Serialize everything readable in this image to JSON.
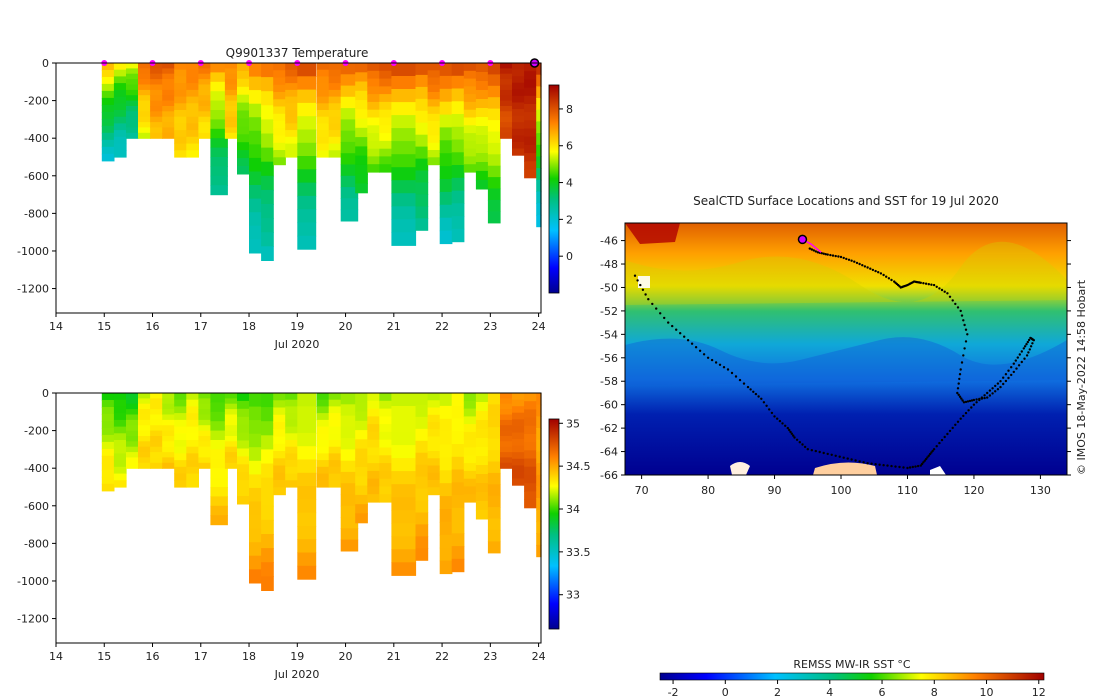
{
  "chart_data": [
    {
      "type": "heatmap",
      "title": "Q9901337  Temperature",
      "xlabel": "Jul 2020",
      "ylabel": "",
      "x_ticks": [
        "14",
        "15",
        "16",
        "17",
        "18",
        "19",
        "20",
        "21",
        "22",
        "23",
        "24"
      ],
      "y_ticks": [
        "0",
        "-200",
        "-400",
        "-600",
        "-800",
        "-1000",
        "-1200"
      ],
      "xlim": [
        14,
        24.05
      ],
      "ylim": [
        -1330,
        0
      ],
      "colorbar": {
        "ticks": [
          "0",
          "2",
          "4",
          "6",
          "8"
        ],
        "range": [
          -2,
          9.3
        ]
      },
      "profile_markers": [
        15,
        16,
        17,
        18,
        19,
        20,
        21,
        22,
        23
      ],
      "current_marker": 24,
      "profiles": [
        {
          "x": 14.95,
          "w": 0.25,
          "max": -520,
          "surf": 7,
          "deep": 2
        },
        {
          "x": 15.2,
          "w": 0.25,
          "max": -500,
          "surf": 6,
          "deep": 2
        },
        {
          "x": 15.45,
          "w": 0.25,
          "max": -400,
          "surf": 6,
          "deep": 2.5
        },
        {
          "x": 15.7,
          "w": 0.25,
          "max": -400,
          "surf": 8,
          "deep": 5.5
        },
        {
          "x": 15.95,
          "w": 0.25,
          "max": -400,
          "surf": 8,
          "deep": 6.5
        },
        {
          "x": 16.2,
          "w": 0.25,
          "max": -400,
          "surf": 8,
          "deep": 6.5
        },
        {
          "x": 16.45,
          "w": 0.25,
          "max": -500,
          "surf": 7.5,
          "deep": 6
        },
        {
          "x": 16.7,
          "w": 0.25,
          "max": -500,
          "surf": 7.5,
          "deep": 6
        },
        {
          "x": 16.95,
          "w": 0.25,
          "max": -400,
          "surf": 7.5,
          "deep": 6
        },
        {
          "x": 17.2,
          "w": 0.35,
          "max": -700,
          "surf": 7.5,
          "deep": 2.5
        },
        {
          "x": 17.5,
          "w": 0.25,
          "max": -400,
          "surf": 7.5,
          "deep": 6
        },
        {
          "x": 17.75,
          "w": 0.25,
          "max": -590,
          "surf": 7,
          "deep": 3.5
        },
        {
          "x": 18.0,
          "w": 0.25,
          "max": -1010,
          "surf": 7.5,
          "deep": 2
        },
        {
          "x": 18.25,
          "w": 0.25,
          "max": -1050,
          "surf": 8,
          "deep": 2
        },
        {
          "x": 18.5,
          "w": 0.25,
          "max": -540,
          "surf": 8,
          "deep": 5
        },
        {
          "x": 18.75,
          "w": 0.25,
          "max": -500,
          "surf": 8,
          "deep": 5.5
        },
        {
          "x": 19.0,
          "w": 0.38,
          "max": -990,
          "surf": 8.5,
          "deep": 2
        },
        {
          "x": 19.4,
          "w": 0.25,
          "max": -500,
          "surf": 8,
          "deep": 5.5
        },
        {
          "x": 19.65,
          "w": 0.25,
          "max": -500,
          "surf": 8,
          "deep": 5.5
        },
        {
          "x": 19.9,
          "w": 0.35,
          "max": -840,
          "surf": 8,
          "deep": 2.5
        },
        {
          "x": 20.2,
          "w": 0.25,
          "max": -690,
          "surf": 8,
          "deep": 3.5
        },
        {
          "x": 20.45,
          "w": 0.25,
          "max": -580,
          "surf": 8.5,
          "deep": 4.5
        },
        {
          "x": 20.7,
          "w": 0.25,
          "max": -580,
          "surf": 8.5,
          "deep": 4.5
        },
        {
          "x": 20.95,
          "w": 0.5,
          "max": -970,
          "surf": 8.5,
          "deep": 2
        },
        {
          "x": 21.45,
          "w": 0.25,
          "max": -890,
          "surf": 8.5,
          "deep": 2.5
        },
        {
          "x": 21.7,
          "w": 0.25,
          "max": -540,
          "surf": 8.5,
          "deep": 5
        },
        {
          "x": 21.95,
          "w": 0.25,
          "max": -960,
          "surf": 8.5,
          "deep": 2
        },
        {
          "x": 22.2,
          "w": 0.25,
          "max": -950,
          "surf": 8.5,
          "deep": 2
        },
        {
          "x": 22.45,
          "w": 0.25,
          "max": -580,
          "surf": 8.5,
          "deep": 4.5
        },
        {
          "x": 22.7,
          "w": 0.25,
          "max": -670,
          "surf": 8.5,
          "deep": 4
        },
        {
          "x": 22.95,
          "w": 0.25,
          "max": -850,
          "surf": 8.5,
          "deep": 3.5
        },
        {
          "x": 23.2,
          "w": 0.25,
          "max": -400,
          "surf": 9,
          "deep": 8
        },
        {
          "x": 23.45,
          "w": 0.25,
          "max": -490,
          "surf": 9,
          "deep": 8.5
        },
        {
          "x": 23.7,
          "w": 0.25,
          "max": -610,
          "surf": 9,
          "deep": 8.5
        },
        {
          "x": 23.95,
          "w": 0.1,
          "max": -870,
          "surf": 9,
          "deep": 1.5
        }
      ]
    },
    {
      "type": "heatmap",
      "title": "",
      "xlabel": "Jul 2020",
      "ylabel": "",
      "x_ticks": [
        "14",
        "15",
        "16",
        "17",
        "18",
        "19",
        "20",
        "21",
        "22",
        "23",
        "24"
      ],
      "y_ticks": [
        "0",
        "-200",
        "-400",
        "-600",
        "-800",
        "-1000",
        "-1200"
      ],
      "xlim": [
        14,
        24.05
      ],
      "ylim": [
        -1330,
        0
      ],
      "colorbar": {
        "ticks": [
          "33",
          "33.5",
          "34",
          "34.5",
          "35"
        ],
        "range": [
          32.6,
          35.05
        ]
      },
      "profiles": [
        {
          "x": 14.95,
          "w": 0.25,
          "max": -520,
          "surf": 33.9,
          "deep": 34.4
        },
        {
          "x": 15.2,
          "w": 0.25,
          "max": -500,
          "surf": 33.85,
          "deep": 34.3
        },
        {
          "x": 15.45,
          "w": 0.25,
          "max": -400,
          "surf": 33.85,
          "deep": 34.25
        },
        {
          "x": 15.7,
          "w": 0.25,
          "max": -400,
          "surf": 34.2,
          "deep": 34.4
        },
        {
          "x": 15.95,
          "w": 0.25,
          "max": -400,
          "surf": 34.25,
          "deep": 34.4
        },
        {
          "x": 16.2,
          "w": 0.25,
          "max": -400,
          "surf": 34.1,
          "deep": 34.4
        },
        {
          "x": 16.45,
          "w": 0.25,
          "max": -500,
          "surf": 34.05,
          "deep": 34.4
        },
        {
          "x": 16.7,
          "w": 0.25,
          "max": -500,
          "surf": 34.2,
          "deep": 34.4
        },
        {
          "x": 16.95,
          "w": 0.25,
          "max": -400,
          "surf": 34.0,
          "deep": 34.4
        },
        {
          "x": 17.2,
          "w": 0.35,
          "max": -700,
          "surf": 33.95,
          "deep": 34.45
        },
        {
          "x": 17.5,
          "w": 0.25,
          "max": -400,
          "surf": 34.05,
          "deep": 34.4
        },
        {
          "x": 17.75,
          "w": 0.25,
          "max": -590,
          "surf": 33.9,
          "deep": 34.45
        },
        {
          "x": 18.0,
          "w": 0.25,
          "max": -1010,
          "surf": 33.9,
          "deep": 34.6
        },
        {
          "x": 18.25,
          "w": 0.25,
          "max": -1050,
          "surf": 33.95,
          "deep": 34.6
        },
        {
          "x": 18.5,
          "w": 0.25,
          "max": -540,
          "surf": 34.1,
          "deep": 34.45
        },
        {
          "x": 18.75,
          "w": 0.25,
          "max": -500,
          "surf": 34.0,
          "deep": 34.45
        },
        {
          "x": 19.0,
          "w": 0.38,
          "max": -990,
          "surf": 34.1,
          "deep": 34.55
        },
        {
          "x": 19.4,
          "w": 0.25,
          "max": -500,
          "surf": 34.0,
          "deep": 34.45
        },
        {
          "x": 19.65,
          "w": 0.25,
          "max": -500,
          "surf": 34.1,
          "deep": 34.45
        },
        {
          "x": 19.9,
          "w": 0.35,
          "max": -840,
          "surf": 34.05,
          "deep": 34.55
        },
        {
          "x": 20.2,
          "w": 0.25,
          "max": -690,
          "surf": 34.1,
          "deep": 34.5
        },
        {
          "x": 20.45,
          "w": 0.25,
          "max": -580,
          "surf": 34.25,
          "deep": 34.45
        },
        {
          "x": 20.7,
          "w": 0.25,
          "max": -580,
          "surf": 34.1,
          "deep": 34.45
        },
        {
          "x": 20.95,
          "w": 0.5,
          "max": -970,
          "surf": 34.1,
          "deep": 34.55
        },
        {
          "x": 21.45,
          "w": 0.25,
          "max": -890,
          "surf": 34.15,
          "deep": 34.55
        },
        {
          "x": 21.7,
          "w": 0.25,
          "max": -540,
          "surf": 34.2,
          "deep": 34.45
        },
        {
          "x": 21.95,
          "w": 0.25,
          "max": -960,
          "surf": 34.15,
          "deep": 34.55
        },
        {
          "x": 22.2,
          "w": 0.25,
          "max": -950,
          "surf": 34.2,
          "deep": 34.55
        },
        {
          "x": 22.45,
          "w": 0.25,
          "max": -580,
          "surf": 34.1,
          "deep": 34.45
        },
        {
          "x": 22.7,
          "w": 0.25,
          "max": -670,
          "surf": 34.2,
          "deep": 34.45
        },
        {
          "x": 22.95,
          "w": 0.25,
          "max": -850,
          "surf": 34.3,
          "deep": 34.5
        },
        {
          "x": 23.2,
          "w": 0.25,
          "max": -400,
          "surf": 34.55,
          "deep": 34.75
        },
        {
          "x": 23.45,
          "w": 0.25,
          "max": -490,
          "surf": 34.55,
          "deep": 34.8
        },
        {
          "x": 23.7,
          "w": 0.25,
          "max": -610,
          "surf": 34.55,
          "deep": 34.8
        },
        {
          "x": 23.95,
          "w": 0.1,
          "max": -870,
          "surf": 34.55,
          "deep": 34.5
        }
      ]
    },
    {
      "type": "map",
      "title": "SealCTD Surface Locations and SST for 19 Jul 2020",
      "x_ticks": [
        "70",
        "80",
        "90",
        "100",
        "110",
        "120",
        "130"
      ],
      "y_ticks": [
        "-46",
        "-48",
        "-50",
        "-52",
        "-54",
        "-56",
        "-58",
        "-60",
        "-62",
        "-64",
        "-66"
      ],
      "xlim": [
        67.5,
        134
      ],
      "ylim": [
        -66,
        -44.5
      ],
      "credit": "© IMOS 18-May-2022 14:58 Hobart",
      "colorbar": {
        "label": "REMSS MW-IR SST °C",
        "ticks": [
          "-2",
          "0",
          "2",
          "4",
          "6",
          "8",
          "10",
          "12"
        ],
        "range": [
          -2.5,
          12.2
        ]
      },
      "track_lon": [
        69,
        71,
        74,
        77,
        80,
        83,
        86,
        88,
        90,
        92,
        93,
        95,
        98,
        101,
        104,
        107,
        110,
        112,
        113,
        114,
        116,
        118,
        120,
        122,
        124,
        126,
        127.5,
        128.5,
        129,
        128,
        126,
        124,
        122,
        120,
        118.5,
        117.5,
        118,
        119,
        118,
        116,
        114,
        112,
        111,
        110,
        109,
        108,
        106,
        104,
        102,
        100,
        98,
        96.5,
        95
      ],
      "track_lat": [
        -49,
        -51,
        -53,
        -54.5,
        -56,
        -57,
        -58.5,
        -59.5,
        -61,
        -62,
        -62.8,
        -63.8,
        -64.2,
        -64.6,
        -65,
        -65.2,
        -65.4,
        -65.2,
        -64.5,
        -63.8,
        -62.5,
        -61.2,
        -60,
        -59,
        -58,
        -56.5,
        -55.2,
        -54.3,
        -54.5,
        -55.8,
        -57.2,
        -58.5,
        -59.4,
        -59.6,
        -59.8,
        -59,
        -57,
        -54,
        -52,
        -50.5,
        -49.8,
        -49.6,
        -49.5,
        -49.8,
        -50,
        -49.5,
        -48.8,
        -48.3,
        -47.8,
        -47.4,
        -47.2,
        -47,
        -46.6
      ],
      "recent_lon": [
        94.2,
        95.5,
        97
      ],
      "recent_lat": [
        -45.9,
        -46.3,
        -47
      ],
      "current_lon": 94.2,
      "current_lat": -45.9
    }
  ]
}
